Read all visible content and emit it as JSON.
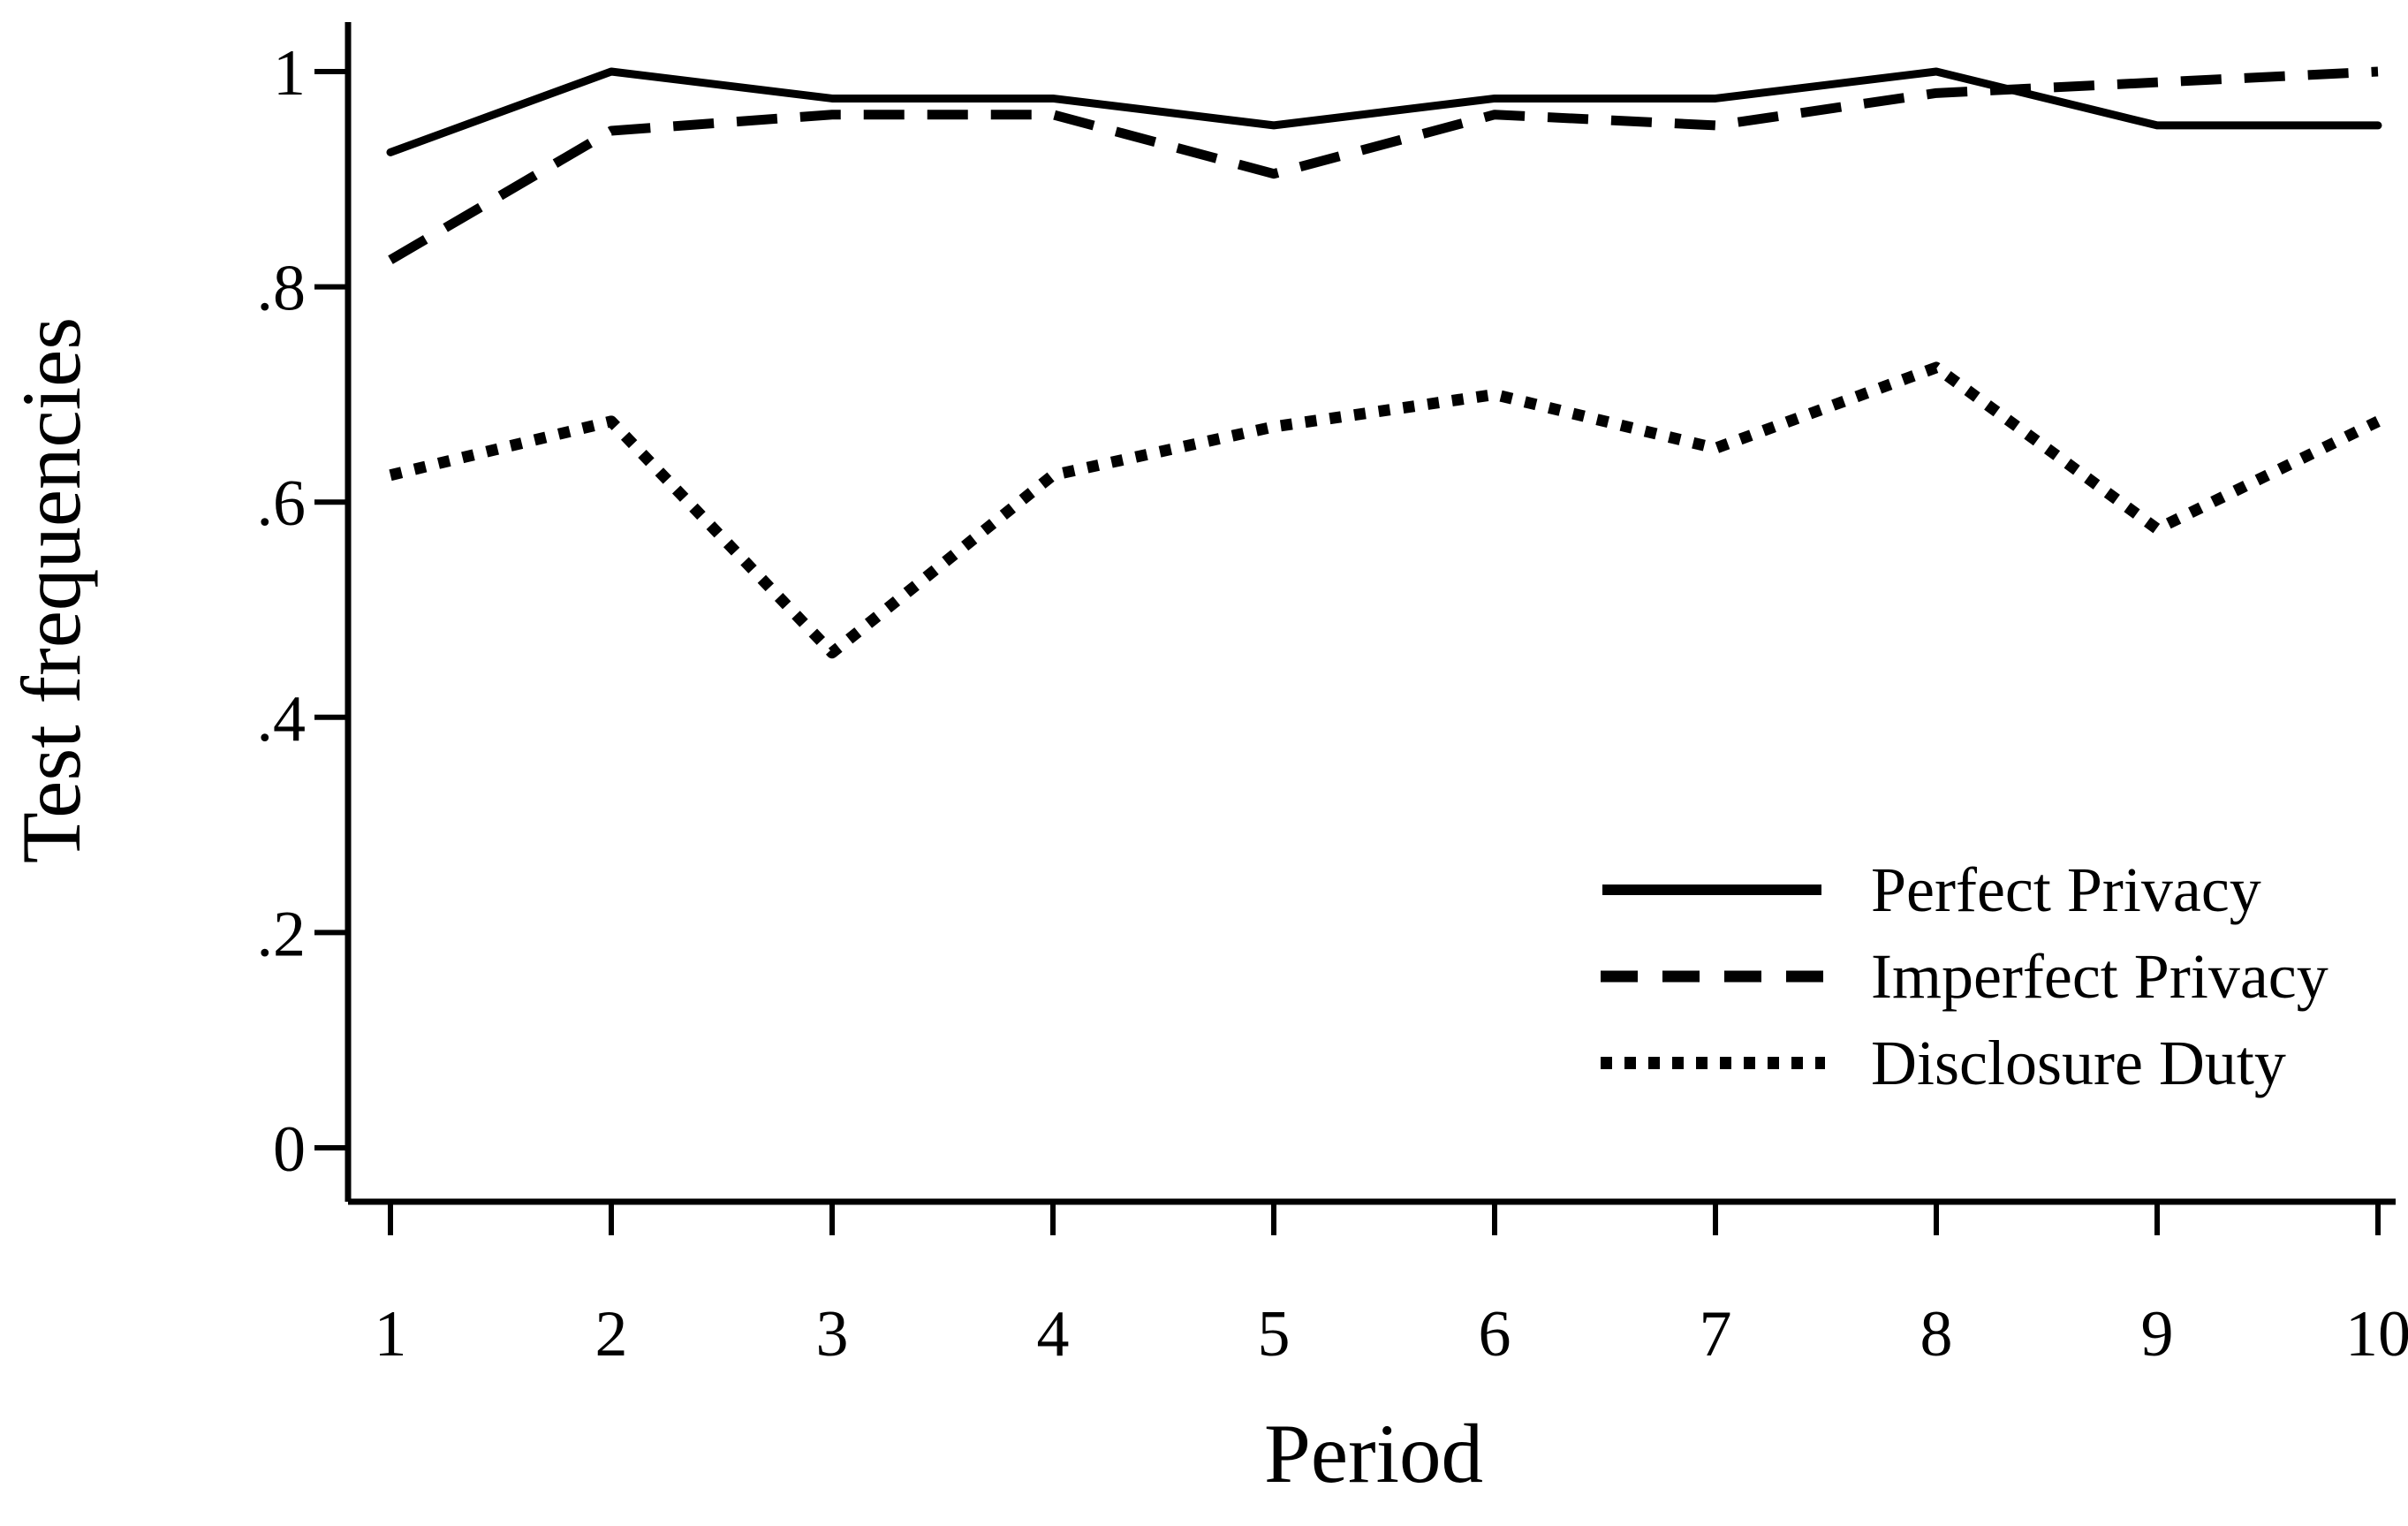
{
  "figure": {
    "background": "#ffffff",
    "line_color": "#000000"
  },
  "axes": {
    "y": {
      "title": "Test frequencies",
      "ticks": [
        {
          "v": 1.0,
          "label": "1"
        },
        {
          "v": 0.8,
          "label": ".8"
        },
        {
          "v": 0.6,
          "label": ".6"
        },
        {
          "v": 0.4,
          "label": ".4"
        },
        {
          "v": 0.2,
          "label": ".2"
        },
        {
          "v": 0.0,
          "label": "0"
        }
      ]
    },
    "x": {
      "title": "Period",
      "ticks": [
        {
          "v": 1,
          "label": "1"
        },
        {
          "v": 2,
          "label": "2"
        },
        {
          "v": 3,
          "label": "3"
        },
        {
          "v": 4,
          "label": "4"
        },
        {
          "v": 5,
          "label": "5"
        },
        {
          "v": 6,
          "label": "6"
        },
        {
          "v": 7,
          "label": "7"
        },
        {
          "v": 8,
          "label": "8"
        },
        {
          "v": 9,
          "label": "9"
        },
        {
          "v": 10,
          "label": "10"
        }
      ]
    }
  },
  "chart_data": {
    "type": "line",
    "title": "",
    "xlabel": "Period",
    "ylabel": "Test frequencies",
    "x": [
      1,
      2,
      3,
      4,
      5,
      6,
      7,
      8,
      9,
      10
    ],
    "xlim": [
      1,
      10
    ],
    "ylim": [
      0,
      1
    ],
    "grid": false,
    "legend_position": "inside lower right",
    "series": [
      {
        "name": "Perfect Privacy",
        "style": "solid",
        "values": [
          0.925,
          1.0,
          0.975,
          0.975,
          0.95,
          0.975,
          0.975,
          1.0,
          0.95,
          0.95
        ]
      },
      {
        "name": "Imperfect Privacy",
        "style": "dashed",
        "values": [
          0.825,
          0.945,
          0.96,
          0.96,
          0.905,
          0.96,
          0.95,
          0.98,
          0.99,
          1.0
        ]
      },
      {
        "name": "Disclosure Duty",
        "style": "dotted",
        "values": [
          0.625,
          0.675,
          0.46,
          0.625,
          0.67,
          0.7,
          0.65,
          0.725,
          0.575,
          0.675
        ]
      }
    ]
  }
}
